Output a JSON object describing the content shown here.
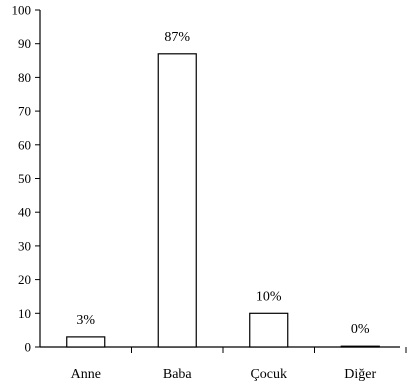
{
  "chart_data": {
    "type": "bar",
    "categories": [
      "Anne",
      "Baba",
      "Çocuk",
      "Diğer"
    ],
    "values": [
      3,
      87,
      10,
      0
    ],
    "data_labels": [
      "3%",
      "87%",
      "10%",
      "0%"
    ],
    "title": "",
    "xlabel": "",
    "ylabel": "",
    "ylim": [
      0,
      100
    ],
    "yticks": [
      0,
      10,
      20,
      30,
      40,
      50,
      60,
      70,
      80,
      90,
      100
    ],
    "grid": false,
    "legend": "none",
    "colors": {
      "bar_fill": "#ffffff",
      "bar_stroke": "#000000",
      "axis": "#000000"
    }
  }
}
